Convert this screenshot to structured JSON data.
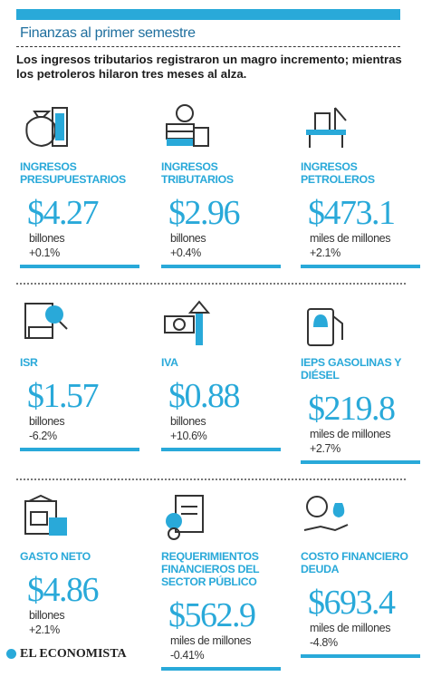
{
  "header": {
    "title": "Finanzas al primer semestre",
    "subtitle": "Los ingresos tributarios registraron un magro incremento; mientras los petroleros hilaron tres meses al alza."
  },
  "cards": [
    {
      "label": "INGRESOS PRESUPUESTARIOS",
      "value": "$4.27",
      "unit": "billones",
      "change": "+0.1%"
    },
    {
      "label": "INGRESOS TRIBUTARIOS",
      "value": "$2.96",
      "unit": "billones",
      "change": "+0.4%"
    },
    {
      "label": "INGRESOS PETROLEROS",
      "value": "$473.1",
      "unit": "miles de millones",
      "change": "+2.1%"
    },
    {
      "label": "ISR",
      "value": "$1.57",
      "unit": "billones",
      "change": "-6.2%"
    },
    {
      "label": "IVA",
      "value": "$0.88",
      "unit": "billones",
      "change": "+10.6%"
    },
    {
      "label": "IEPS GASOLINAS Y DIÉSEL",
      "value": "$219.8",
      "unit": "miles de millones",
      "change": "+2.7%"
    },
    {
      "label": "GASTO NETO",
      "value": "$4.86",
      "unit": "billones",
      "change": "+2.1%"
    },
    {
      "label": "REQUERIMIENTOS FINANCIEROS DEL SECTOR PÚBLICO",
      "value": "$562.9",
      "unit": "miles de millones",
      "change": "-0.41%"
    },
    {
      "label": "COSTO FINANCIERO DEUDA",
      "value": "$693.4",
      "unit": "miles de millones",
      "change": "-4.8%"
    }
  ],
  "footer": {
    "logo": "EL ECONOMISTA"
  }
}
